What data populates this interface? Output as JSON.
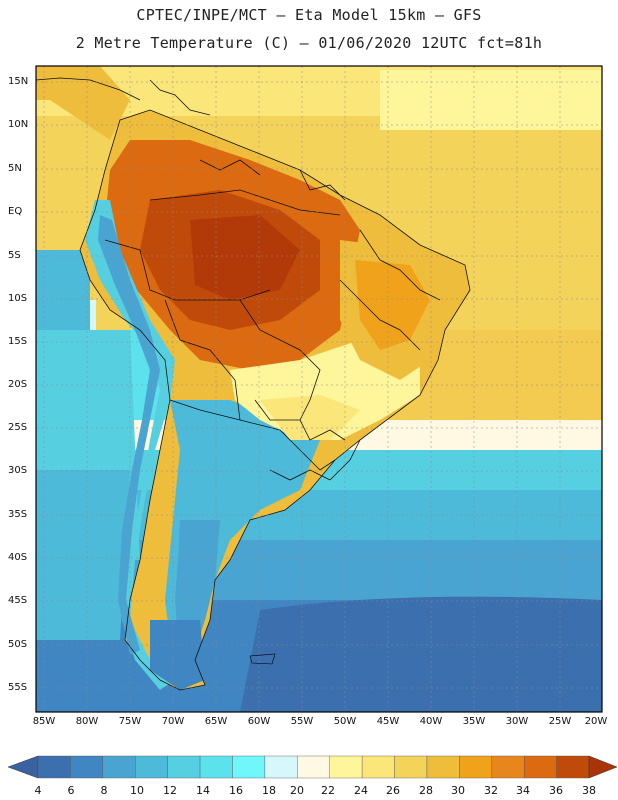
{
  "header": {
    "title_line1": "CPTEC/INPE/MCT –  Eta Model 15km – GFS",
    "title_line2": "2 Metre Temperature (C) – 01/06/2020 12UTC fct=81h"
  },
  "map": {
    "region": "South America",
    "variable": "2 Metre Temperature",
    "units": "C",
    "lat_labels": [
      "15N",
      "10N",
      "5N",
      "EQ",
      "5S",
      "10S",
      "15S",
      "20S",
      "25S",
      "30S",
      "35S",
      "40S",
      "45S",
      "50S",
      "55S"
    ],
    "lon_labels": [
      "85W",
      "80W",
      "75W",
      "70W",
      "65W",
      "60W",
      "55W",
      "50W",
      "45W",
      "40W",
      "35W",
      "30W",
      "25W",
      "20W"
    ]
  },
  "colorbar": {
    "ticks": [
      "4",
      "6",
      "8",
      "10",
      "12",
      "14",
      "16",
      "18",
      "20",
      "22",
      "24",
      "26",
      "28",
      "30",
      "32",
      "34",
      "36",
      "38"
    ],
    "colors": [
      "#3c6fae",
      "#3f86c2",
      "#4aa4d1",
      "#4cbad8",
      "#56cfe0",
      "#5ce2ec",
      "#6ff7fb",
      "#d6f7fb",
      "#fff8e3",
      "#fff59a",
      "#fbe67a",
      "#f4d35b",
      "#efbd3c",
      "#f0a21a",
      "#e8861e",
      "#dc6a10",
      "#c04a0a",
      "#b23a08"
    ],
    "low_arrow_color": "#3a62a0",
    "high_arrow_color": "#a83408"
  }
}
